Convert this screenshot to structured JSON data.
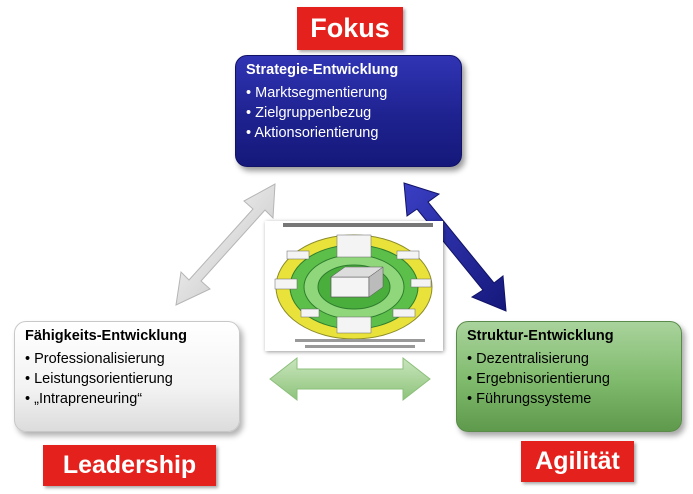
{
  "tags": {
    "fokus": "Fokus",
    "leadership": "Leadership",
    "agilitaet": "Agilität"
  },
  "boxes": {
    "strategy": {
      "title": "Strategie-Entwicklung",
      "items": [
        "Marktsegmentierung",
        "Zielgruppenbezug",
        "Aktionsorientierung"
      ]
    },
    "ability": {
      "title": "Fähigkeits-Entwicklung",
      "items": [
        "Professionalisierung",
        "Leistungsorientierung",
        "„Intrapreneuring“"
      ]
    },
    "structure": {
      "title": "Struktur-Entwicklung",
      "items": [
        "Dezentralisierung",
        "Ergebnisorientierung",
        "Führungssysteme"
      ]
    }
  },
  "colors": {
    "tag_red": "#e4211d",
    "strategy_blue": "#1e228f",
    "structure_green": "#7fba6c",
    "ability_grey": "#f3f3f3"
  }
}
